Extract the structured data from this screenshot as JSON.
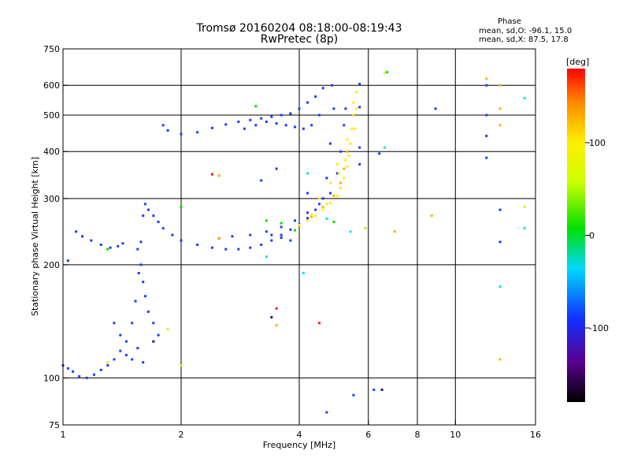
{
  "header": {
    "title_line1": "Tromsø 20160204 08:18:00-08:19:43",
    "title_line2": "RwPretec (8p)"
  },
  "phase_info": {
    "title": "Phase",
    "o_line": "mean, sd,O: -96.1, 15.0",
    "x_line": "mean, sd,X: 87.5, 17.8"
  },
  "chart_data": {
    "type": "scatter",
    "xlabel": "Frequency [MHz]",
    "ylabel": "Stationary phase Virtual Height [km]",
    "xscale": "log",
    "yscale": "log",
    "xlim": [
      1,
      16
    ],
    "ylim": [
      75,
      750
    ],
    "xticks": [
      1,
      2,
      4,
      6,
      8,
      10,
      16
    ],
    "xtick_labels": [
      "1",
      "2",
      "4",
      "6",
      "8",
      "10",
      "16"
    ],
    "yticks": [
      75,
      100,
      200,
      300,
      400,
      500,
      600,
      750
    ],
    "ytick_labels": [
      "75",
      "100",
      "200",
      "300",
      "400",
      "500",
      "600",
      "750"
    ],
    "grid": true,
    "colorbar": {
      "label": "[deg]",
      "range": [
        -180,
        180
      ],
      "ticks": [
        100,
        0,
        -100
      ],
      "tick_labels": [
        "100",
        "0",
        "-100"
      ]
    },
    "series": [
      {
        "color": "#1a3cff",
        "points": [
          [
            1.0,
            108
          ],
          [
            1.03,
            106
          ],
          [
            1.06,
            104
          ],
          [
            1.1,
            101
          ],
          [
            1.15,
            100
          ],
          [
            1.2,
            102
          ],
          [
            1.25,
            105
          ],
          [
            1.3,
            108
          ],
          [
            1.35,
            112
          ],
          [
            1.4,
            118
          ],
          [
            1.45,
            125
          ],
          [
            1.5,
            140
          ],
          [
            1.53,
            160
          ],
          [
            1.56,
            190
          ],
          [
            1.58,
            230
          ],
          [
            1.6,
            270
          ],
          [
            1.62,
            290
          ],
          [
            1.65,
            280
          ],
          [
            1.7,
            270
          ],
          [
            1.75,
            260
          ],
          [
            1.8,
            250
          ],
          [
            1.9,
            240
          ],
          [
            2.0,
            232
          ],
          [
            2.2,
            226
          ],
          [
            2.4,
            222
          ],
          [
            2.6,
            220
          ],
          [
            2.8,
            220
          ],
          [
            3.0,
            222
          ],
          [
            3.2,
            226
          ],
          [
            3.4,
            232
          ],
          [
            3.6,
            240
          ],
          [
            3.8,
            248
          ],
          [
            4.0,
            256
          ],
          [
            4.2,
            266
          ],
          [
            4.4,
            280
          ],
          [
            4.6,
            300
          ],
          [
            4.7,
            340
          ],
          [
            4.8,
            420
          ],
          [
            4.9,
            520
          ],
          [
            4.85,
            600
          ],
          [
            4.6,
            590
          ],
          [
            4.4,
            560
          ],
          [
            4.2,
            540
          ],
          [
            4.0,
            520
          ],
          [
            3.8,
            505
          ],
          [
            3.6,
            500
          ],
          [
            3.4,
            495
          ],
          [
            3.2,
            490
          ],
          [
            3.0,
            485
          ],
          [
            2.8,
            480
          ],
          [
            2.6,
            472
          ],
          [
            2.4,
            462
          ],
          [
            2.2,
            450
          ],
          [
            2.0,
            445
          ],
          [
            1.85,
            455
          ],
          [
            1.8,
            470
          ],
          [
            2.5,
            235
          ],
          [
            2.7,
            238
          ],
          [
            3.0,
            240
          ],
          [
            3.3,
            245
          ],
          [
            3.6,
            252
          ],
          [
            3.9,
            262
          ],
          [
            4.2,
            275
          ],
          [
            4.5,
            290
          ],
          [
            4.8,
            310
          ],
          [
            5.0,
            350
          ],
          [
            5.1,
            400
          ],
          [
            5.2,
            470
          ],
          [
            5.25,
            520
          ],
          [
            1.08,
            245
          ],
          [
            1.12,
            238
          ],
          [
            1.18,
            232
          ],
          [
            1.25,
            226
          ],
          [
            1.32,
            222
          ],
          [
            1.38,
            224
          ],
          [
            1.42,
            228
          ],
          [
            1.03,
            205
          ],
          [
            1.55,
            220
          ],
          [
            1.58,
            200
          ],
          [
            1.6,
            180
          ],
          [
            1.62,
            165
          ],
          [
            1.65,
            150
          ],
          [
            1.7,
            140
          ],
          [
            1.75,
            130
          ],
          [
            3.4,
            240
          ],
          [
            3.6,
            236
          ],
          [
            3.8,
            232
          ],
          [
            1.35,
            140
          ],
          [
            1.4,
            130
          ],
          [
            1.45,
            115
          ],
          [
            1.5,
            112
          ],
          [
            1.55,
            120
          ],
          [
            1.6,
            110
          ],
          [
            2.9,
            460
          ],
          [
            3.1,
            470
          ],
          [
            3.3,
            480
          ],
          [
            3.5,
            475
          ],
          [
            3.7,
            470
          ],
          [
            3.9,
            465
          ],
          [
            4.1,
            460
          ],
          [
            4.3,
            470
          ],
          [
            4.5,
            500
          ],
          [
            3.2,
            335
          ],
          [
            3.5,
            360
          ],
          [
            4.2,
            310
          ],
          [
            5.7,
            605
          ],
          [
            5.7,
            525
          ],
          [
            5.7,
            410
          ],
          [
            5.7,
            370
          ],
          [
            12,
            500
          ],
          [
            12,
            440
          ],
          [
            12,
            385
          ],
          [
            12,
            600
          ],
          [
            13,
            280
          ],
          [
            13,
            230
          ],
          [
            6.4,
            395
          ],
          [
            8.9,
            520
          ],
          [
            5.9,
            250
          ],
          [
            5.5,
            90
          ],
          [
            4.7,
            81
          ],
          [
            6.2,
            93
          ]
        ]
      },
      {
        "color": "#ffea00",
        "points": [
          [
            4.0,
            255
          ],
          [
            4.2,
            262
          ],
          [
            4.4,
            270
          ],
          [
            4.6,
            280
          ],
          [
            4.8,
            292
          ],
          [
            5.0,
            305
          ],
          [
            5.1,
            320
          ],
          [
            5.2,
            340
          ],
          [
            5.3,
            365
          ],
          [
            5.35,
            390
          ],
          [
            5.4,
            420
          ],
          [
            5.45,
            460
          ],
          [
            5.5,
            500
          ],
          [
            4.5,
            300
          ],
          [
            4.8,
            330
          ],
          [
            5.0,
            370
          ],
          [
            5.3,
            430
          ],
          [
            5.5,
            540
          ],
          [
            5.6,
            575
          ],
          [
            4.3,
            272
          ],
          [
            4.7,
            290
          ],
          [
            5.05,
            350
          ],
          [
            5.25,
            380
          ],
          [
            5.55,
            460
          ],
          [
            5.6,
            520
          ]
        ]
      },
      {
        "color": "#ffb000",
        "points": [
          [
            4.3,
            268
          ],
          [
            4.6,
            285
          ],
          [
            4.9,
            305
          ],
          [
            5.1,
            330
          ],
          [
            5.2,
            360
          ],
          [
            5.3,
            400
          ],
          [
            13,
            470
          ],
          [
            13,
            520
          ],
          [
            13,
            600
          ],
          [
            12,
            625
          ],
          [
            2.5,
            345
          ],
          [
            7.0,
            245
          ],
          [
            8.7,
            270
          ],
          [
            13,
            112
          ],
          [
            3.5,
            138
          ],
          [
            2.5,
            235
          ]
        ]
      },
      {
        "color": "#00e000",
        "points": [
          [
            3.6,
            258
          ],
          [
            3.3,
            262
          ],
          [
            4.9,
            260
          ],
          [
            1.3,
            220
          ],
          [
            2.0,
            285
          ],
          [
            3.9,
            247
          ],
          [
            6.7,
            650
          ],
          [
            3.1,
            528
          ]
        ]
      },
      {
        "color": "#00e5ff",
        "points": [
          [
            13,
            175
          ],
          [
            4.1,
            190
          ],
          [
            4.7,
            265
          ],
          [
            5.4,
            245
          ],
          [
            3.3,
            210
          ],
          [
            4.2,
            350
          ],
          [
            6.6,
            410
          ],
          [
            15,
            555
          ],
          [
            15,
            250
          ]
        ]
      },
      {
        "color": "#ff2020",
        "points": [
          [
            3.5,
            153
          ],
          [
            4.5,
            140
          ],
          [
            2.4,
            348
          ]
        ]
      },
      {
        "color": "#c8ff00",
        "points": [
          [
            2.0,
            108
          ],
          [
            1.85,
            135
          ],
          [
            5.9,
            250
          ],
          [
            6.6,
            648
          ],
          [
            15,
            285
          ],
          [
            1.3,
            110
          ]
        ]
      },
      {
        "color": "#1a1a80",
        "points": [
          [
            6.5,
            93
          ],
          [
            3.4,
            145
          ],
          [
            1.7,
            125
          ]
        ]
      }
    ]
  }
}
